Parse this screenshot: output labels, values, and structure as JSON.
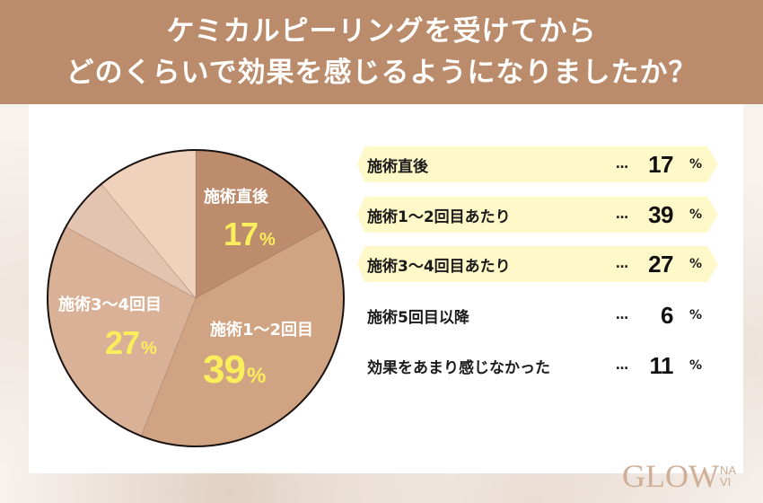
{
  "header": {
    "title_line1": "ケミカルピーリングを受けてから",
    "title_line2": "どのくらいで効果を感じるようになりましたか？"
  },
  "colors": {
    "header_bg": "#bb8c6b",
    "pie_slices": [
      "#bd8c6d",
      "#d0a482",
      "#d8b197",
      "#e2c4b0",
      "#f0d1bb"
    ],
    "highlight_bg": "#fff8c8",
    "pie_pct_text": "#fbee5c"
  },
  "chart_data": {
    "type": "pie",
    "title": "ケミカルピーリングを受けてからどのくらいで効果を感じるようになりましたか？",
    "categories": [
      "施術直後",
      "施術1〜2回目あたり",
      "施術3〜4回目あたり",
      "施術5回目以降",
      "効果をあまり感じなかった"
    ],
    "values": [
      17,
      39,
      27,
      6,
      11
    ],
    "unit": "%",
    "start_angle": "12 o'clock, clockwise",
    "slice_labels": [
      {
        "label": "施術直後",
        "pct": "17"
      },
      {
        "label": "施術1〜2回目",
        "pct": "39"
      },
      {
        "label": "施術3〜4回目",
        "pct": "27"
      }
    ],
    "legend_position": "right"
  },
  "pie": {
    "labels": [
      {
        "text": "施術直後",
        "num": "17",
        "unit": "%"
      },
      {
        "text": "施術1〜2回目",
        "num": "39",
        "unit": "%"
      },
      {
        "text": "施術3〜4回目",
        "num": "27",
        "unit": "%"
      }
    ]
  },
  "legend": {
    "dots": "…",
    "unit": "%",
    "items": [
      {
        "label": "施術直後",
        "value": "17"
      },
      {
        "label": "施術1〜2回目あたり",
        "value": "39"
      },
      {
        "label": "施術3〜4回目あたり",
        "value": "27"
      },
      {
        "label": "施術5回目以降",
        "value": "6"
      },
      {
        "label": "効果をあまり感じなかった",
        "value": "11"
      }
    ]
  },
  "logo": {
    "main": "GLOW",
    "sub_top": "NA",
    "sub_bottom": "VI"
  }
}
